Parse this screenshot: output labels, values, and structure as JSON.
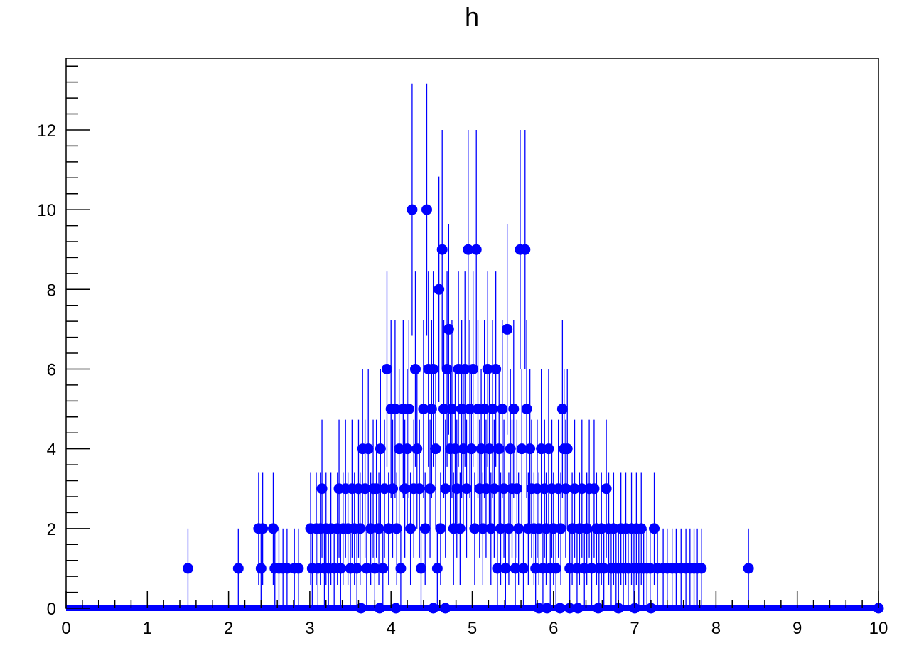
{
  "chart_data": {
    "type": "scatter",
    "title": "h",
    "xlabel": "",
    "ylabel": "",
    "xlim": [
      0,
      10
    ],
    "ylim": [
      0,
      13.8
    ],
    "x_ticks": [
      "0",
      "1",
      "2",
      "3",
      "4",
      "5",
      "6",
      "7",
      "8",
      "9",
      "10"
    ],
    "y_ticks": [
      "0",
      "2",
      "4",
      "6",
      "8",
      "10",
      "12"
    ],
    "grid": false,
    "legend": "none",
    "color": "#0000ff",
    "points": [
      [
        1.5,
        1
      ],
      [
        2.12,
        1
      ],
      [
        2.37,
        2
      ],
      [
        2.4,
        1
      ],
      [
        2.42,
        2
      ],
      [
        2.55,
        2
      ],
      [
        2.57,
        1
      ],
      [
        2.62,
        1
      ],
      [
        2.67,
        1
      ],
      [
        2.72,
        1
      ],
      [
        2.81,
        1
      ],
      [
        2.86,
        1
      ],
      [
        3.01,
        2
      ],
      [
        3.03,
        1
      ],
      [
        3.08,
        2
      ],
      [
        3.1,
        1
      ],
      [
        3.13,
        2
      ],
      [
        3.15,
        3
      ],
      [
        3.18,
        1
      ],
      [
        3.2,
        2
      ],
      [
        3.23,
        1
      ],
      [
        3.26,
        2
      ],
      [
        3.3,
        1
      ],
      [
        3.34,
        2
      ],
      [
        3.36,
        3
      ],
      [
        3.38,
        1
      ],
      [
        3.41,
        2
      ],
      [
        3.44,
        3
      ],
      [
        3.47,
        2
      ],
      [
        3.5,
        1
      ],
      [
        3.52,
        3
      ],
      [
        3.55,
        2
      ],
      [
        3.58,
        1
      ],
      [
        3.6,
        3
      ],
      [
        3.62,
        2
      ],
      [
        3.65,
        4
      ],
      [
        3.68,
        3
      ],
      [
        3.7,
        1
      ],
      [
        3.72,
        4
      ],
      [
        3.75,
        2
      ],
      [
        3.78,
        3
      ],
      [
        3.8,
        1
      ],
      [
        3.82,
        3
      ],
      [
        3.85,
        2
      ],
      [
        3.87,
        4
      ],
      [
        3.9,
        1
      ],
      [
        3.92,
        3
      ],
      [
        3.95,
        6
      ],
      [
        3.97,
        2
      ],
      [
        4.0,
        5
      ],
      [
        4.02,
        3
      ],
      [
        4.05,
        5
      ],
      [
        4.07,
        2
      ],
      [
        4.1,
        4
      ],
      [
        4.12,
        1
      ],
      [
        4.15,
        5
      ],
      [
        4.17,
        3
      ],
      [
        4.2,
        4
      ],
      [
        4.22,
        5
      ],
      [
        4.24,
        2
      ],
      [
        4.26,
        10
      ],
      [
        4.28,
        3
      ],
      [
        4.3,
        6
      ],
      [
        4.32,
        4
      ],
      [
        4.35,
        3
      ],
      [
        4.37,
        1
      ],
      [
        4.4,
        5
      ],
      [
        4.42,
        2
      ],
      [
        4.44,
        10
      ],
      [
        4.46,
        6
      ],
      [
        4.48,
        3
      ],
      [
        4.5,
        5
      ],
      [
        4.52,
        6
      ],
      [
        4.55,
        4
      ],
      [
        4.57,
        1
      ],
      [
        4.59,
        8
      ],
      [
        4.61,
        2
      ],
      [
        4.63,
        9
      ],
      [
        4.65,
        5
      ],
      [
        4.67,
        3
      ],
      [
        4.69,
        6
      ],
      [
        4.71,
        7
      ],
      [
        4.73,
        4
      ],
      [
        4.75,
        5
      ],
      [
        4.77,
        2
      ],
      [
        4.79,
        4
      ],
      [
        4.81,
        3
      ],
      [
        4.83,
        6
      ],
      [
        4.85,
        2
      ],
      [
        4.87,
        5
      ],
      [
        4.89,
        4
      ],
      [
        4.91,
        6
      ],
      [
        4.93,
        3
      ],
      [
        4.95,
        9
      ],
      [
        4.97,
        5
      ],
      [
        4.99,
        4
      ],
      [
        5.01,
        6
      ],
      [
        5.03,
        2
      ],
      [
        5.05,
        9
      ],
      [
        5.07,
        5
      ],
      [
        5.09,
        3
      ],
      [
        5.11,
        4
      ],
      [
        5.13,
        2
      ],
      [
        5.15,
        5
      ],
      [
        5.17,
        3
      ],
      [
        5.19,
        6
      ],
      [
        5.21,
        4
      ],
      [
        5.23,
        2
      ],
      [
        5.25,
        5
      ],
      [
        5.27,
        3
      ],
      [
        5.29,
        6
      ],
      [
        5.31,
        1
      ],
      [
        5.33,
        4
      ],
      [
        5.35,
        2
      ],
      [
        5.37,
        5
      ],
      [
        5.39,
        3
      ],
      [
        5.41,
        1
      ],
      [
        5.43,
        7
      ],
      [
        5.45,
        2
      ],
      [
        5.47,
        4
      ],
      [
        5.49,
        3
      ],
      [
        5.51,
        5
      ],
      [
        5.53,
        1
      ],
      [
        5.55,
        3
      ],
      [
        5.57,
        2
      ],
      [
        5.59,
        9
      ],
      [
        5.61,
        4
      ],
      [
        5.63,
        1
      ],
      [
        5.65,
        9
      ],
      [
        5.67,
        5
      ],
      [
        5.69,
        2
      ],
      [
        5.71,
        4
      ],
      [
        5.73,
        3
      ],
      [
        5.76,
        2
      ],
      [
        5.78,
        1
      ],
      [
        5.8,
        3
      ],
      [
        5.82,
        2
      ],
      [
        5.85,
        4
      ],
      [
        5.87,
        1
      ],
      [
        5.89,
        3
      ],
      [
        5.91,
        2
      ],
      [
        5.94,
        4
      ],
      [
        5.96,
        1
      ],
      [
        5.98,
        3
      ],
      [
        6.0,
        2
      ],
      [
        6.03,
        1
      ],
      [
        6.06,
        3
      ],
      [
        6.09,
        2
      ],
      [
        6.11,
        5
      ],
      [
        6.13,
        4
      ],
      [
        6.15,
        3
      ],
      [
        6.17,
        4
      ],
      [
        6.2,
        1
      ],
      [
        6.23,
        2
      ],
      [
        6.26,
        3
      ],
      [
        6.29,
        1
      ],
      [
        6.32,
        2
      ],
      [
        6.35,
        3
      ],
      [
        6.38,
        1
      ],
      [
        6.41,
        2
      ],
      [
        6.44,
        3
      ],
      [
        6.47,
        1
      ],
      [
        6.5,
        3
      ],
      [
        6.53,
        2
      ],
      [
        6.56,
        1
      ],
      [
        6.59,
        2
      ],
      [
        6.62,
        1
      ],
      [
        6.65,
        3
      ],
      [
        6.68,
        2
      ],
      [
        6.71,
        1
      ],
      [
        6.74,
        2
      ],
      [
        6.77,
        1
      ],
      [
        6.8,
        1
      ],
      [
        6.83,
        2
      ],
      [
        6.86,
        1
      ],
      [
        6.89,
        2
      ],
      [
        6.92,
        1
      ],
      [
        6.96,
        2
      ],
      [
        6.99,
        1
      ],
      [
        7.02,
        2
      ],
      [
        7.05,
        1
      ],
      [
        7.08,
        2
      ],
      [
        7.11,
        1
      ],
      [
        7.15,
        1
      ],
      [
        7.19,
        1
      ],
      [
        7.24,
        2
      ],
      [
        7.28,
        1
      ],
      [
        7.35,
        1
      ],
      [
        7.4,
        1
      ],
      [
        7.46,
        1
      ],
      [
        7.51,
        1
      ],
      [
        7.57,
        1
      ],
      [
        7.63,
        1
      ],
      [
        7.68,
        1
      ],
      [
        7.73,
        1
      ],
      [
        7.77,
        1
      ],
      [
        7.82,
        1
      ],
      [
        8.4,
        1
      ]
    ]
  }
}
